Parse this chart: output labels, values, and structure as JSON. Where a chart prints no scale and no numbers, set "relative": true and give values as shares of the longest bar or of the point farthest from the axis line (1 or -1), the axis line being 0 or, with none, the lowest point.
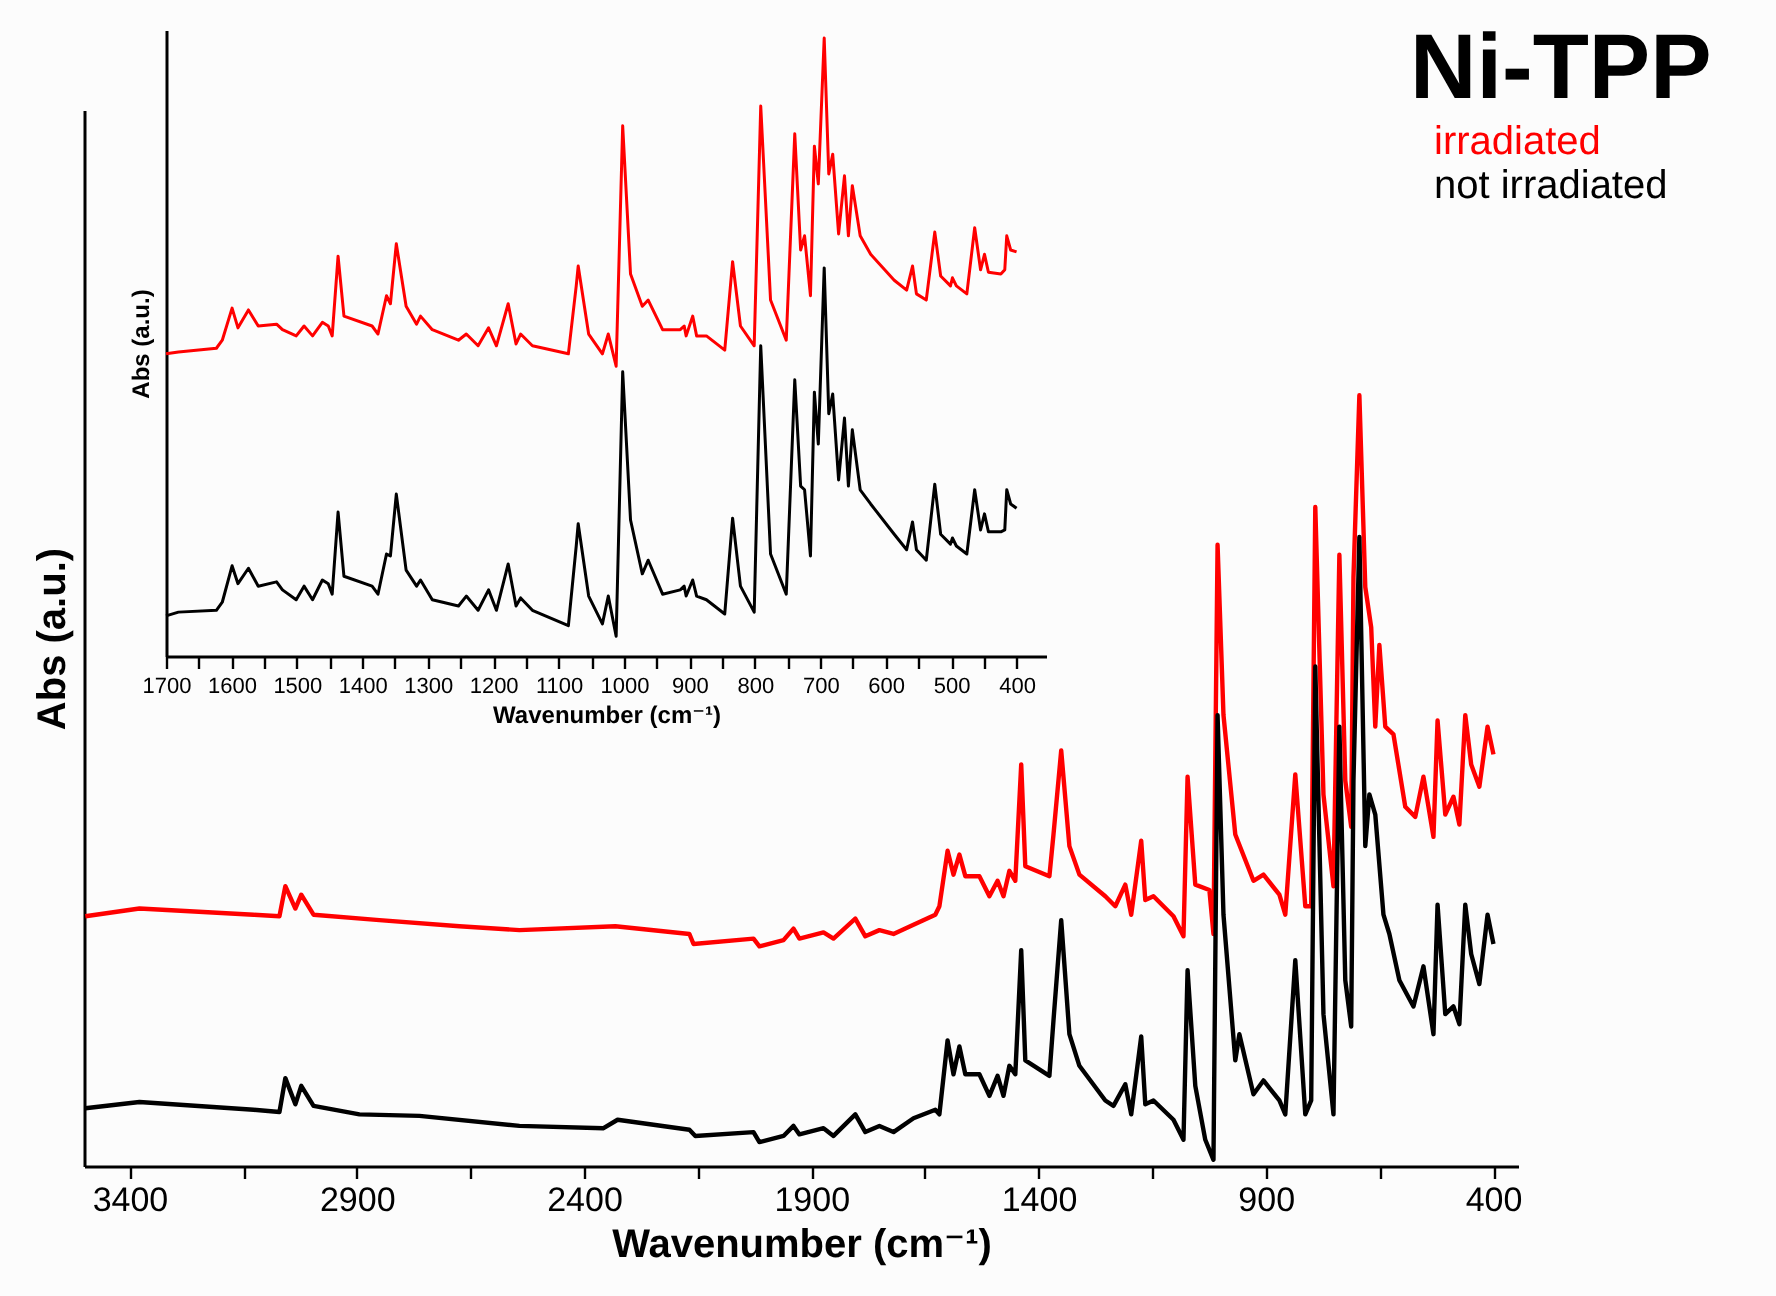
{
  "chart_data": [
    {
      "type": "line",
      "relative": true,
      "xlabel": "Wavenumber (cm⁻¹)",
      "ylabel": "Abs (a.u.)",
      "legend_title": "Ni-TPP",
      "legend": "top right",
      "xlim": [
        3500,
        345
      ],
      "xticks": [
        3400,
        {
          "value": 3150,
          "label": null
        },
        2900,
        {
          "value": 2650,
          "label": null
        },
        2400,
        {
          "value": 2150,
          "label": null
        },
        1900,
        {
          "value": 1650,
          "label": null
        },
        1400,
        {
          "value": 1150,
          "label": null
        },
        900,
        {
          "value": 650,
          "label": null
        },
        400
      ],
      "series": [
        {
          "name": "irradiated",
          "color": "#ff0000",
          "x": [
            3497,
            3378,
            3127,
            3070,
            3057,
            3035,
            3022,
            2995,
            2850,
            2674,
            2542,
            2331,
            2168,
            2159,
            2027,
            2014,
            1961,
            1939,
            1926,
            1873,
            1851,
            1803,
            1781,
            1750,
            1719,
            1675,
            1627,
            1618,
            1600,
            1587,
            1574,
            1561,
            1530,
            1508,
            1490,
            1477,
            1464,
            1451,
            1438,
            1429,
            1376,
            1367,
            1350,
            1332,
            1310,
            1253,
            1231,
            1209,
            1196,
            1174,
            1165,
            1147,
            1103,
            1081,
            1072,
            1055,
            1024,
            1015,
            1006,
            993,
            967,
            927,
            905,
            870,
            857,
            835,
            813,
            800,
            791,
            773,
            751,
            738,
            725,
            712,
            707,
            694,
            681,
            668,
            659,
            650,
            637,
            619,
            593,
            571,
            553,
            531,
            522,
            505,
            487,
            474,
            461,
            448,
            430,
            412,
            399
          ],
          "values": [
            0.324,
            0.334,
            0.326,
            0.324,
            0.363,
            0.334,
            0.352,
            0.326,
            0.319,
            0.311,
            0.306,
            0.311,
            0.301,
            0.288,
            0.295,
            0.285,
            0.293,
            0.308,
            0.295,
            0.303,
            0.295,
            0.321,
            0.298,
            0.306,
            0.301,
            0.313,
            0.326,
            0.337,
            0.409,
            0.378,
            0.404,
            0.376,
            0.376,
            0.35,
            0.37,
            0.35,
            0.383,
            0.37,
            0.521,
            0.389,
            0.376,
            0.43,
            0.539,
            0.415,
            0.378,
            0.35,
            0.337,
            0.365,
            0.326,
            0.422,
            0.345,
            0.35,
            0.324,
            0.298,
            0.505,
            0.365,
            0.358,
            0.301,
            0.806,
            0.585,
            0.43,
            0.37,
            0.378,
            0.352,
            0.326,
            0.508,
            0.337,
            0.337,
            0.855,
            0.482,
            0.363,
            0.793,
            0.5,
            0.44,
            0.764,
            1.0,
            0.751,
            0.699,
            0.57,
            0.676,
            0.57,
            0.56,
            0.466,
            0.453,
            0.505,
            0.427,
            0.578,
            0.456,
            0.479,
            0.443,
            0.585,
            0.521,
            0.492,
            0.57,
            0.534
          ]
        },
        {
          "name": "not irradiated",
          "color": "#000000",
          "x": [
            3497,
            3378,
            3127,
            3070,
            3057,
            3035,
            3022,
            2995,
            2894,
            2762,
            2542,
            2357,
            2326,
            2168,
            2155,
            2027,
            2014,
            1961,
            1939,
            1926,
            1873,
            1851,
            1803,
            1781,
            1750,
            1719,
            1675,
            1627,
            1618,
            1600,
            1587,
            1574,
            1561,
            1530,
            1508,
            1490,
            1477,
            1464,
            1451,
            1438,
            1429,
            1376,
            1367,
            1350,
            1332,
            1310,
            1253,
            1235,
            1209,
            1196,
            1174,
            1165,
            1147,
            1103,
            1081,
            1072,
            1055,
            1033,
            1015,
            1006,
            993,
            967,
            958,
            927,
            905,
            870,
            857,
            835,
            813,
            800,
            791,
            773,
            751,
            738,
            725,
            712,
            707,
            694,
            681,
            672,
            659,
            641,
            628,
            606,
            575,
            553,
            531,
            522,
            505,
            487,
            474,
            461,
            448,
            430,
            412,
            399
          ],
          "values": [
            0.075,
            0.083,
            0.073,
            0.07,
            0.114,
            0.08,
            0.104,
            0.078,
            0.067,
            0.065,
            0.052,
            0.049,
            0.06,
            0.047,
            0.039,
            0.044,
            0.031,
            0.039,
            0.052,
            0.041,
            0.049,
            0.039,
            0.067,
            0.044,
            0.052,
            0.044,
            0.062,
            0.073,
            0.067,
            0.163,
            0.119,
            0.155,
            0.119,
            0.119,
            0.091,
            0.117,
            0.091,
            0.13,
            0.119,
            0.28,
            0.137,
            0.117,
            0.189,
            0.319,
            0.171,
            0.13,
            0.085,
            0.078,
            0.106,
            0.067,
            0.168,
            0.08,
            0.085,
            0.06,
            0.034,
            0.254,
            0.104,
            0.034,
            0.008,
            0.585,
            0.326,
            0.137,
            0.171,
            0.093,
            0.111,
            0.085,
            0.067,
            0.267,
            0.067,
            0.085,
            0.648,
            0.197,
            0.067,
            0.57,
            0.241,
            0.181,
            0.5,
            0.816,
            0.415,
            0.482,
            0.456,
            0.326,
            0.301,
            0.241,
            0.207,
            0.259,
            0.171,
            0.339,
            0.197,
            0.207,
            0.184,
            0.339,
            0.275,
            0.236,
            0.326,
            0.288
          ]
        }
      ]
    },
    {
      "type": "line",
      "relative": true,
      "xlabel": "Wavenumber (cm⁻¹)",
      "ylabel": "Abs (a.u.)",
      "xlim": [
        1700,
        355
      ],
      "xticks": [
        1700,
        {
          "value": 1650,
          "label": null
        },
        1600,
        {
          "value": 1550,
          "label": null
        },
        1500,
        {
          "value": 1450,
          "label": null
        },
        1400,
        {
          "value": 1350,
          "label": null
        },
        1300,
        {
          "value": 1250,
          "label": null
        },
        1200,
        {
          "value": 1150,
          "label": null
        },
        1100,
        {
          "value": 1050,
          "label": null
        },
        1000,
        {
          "value": 950,
          "label": null
        },
        900,
        {
          "value": 850,
          "label": null
        },
        800,
        {
          "value": 750,
          "label": null
        },
        700,
        {
          "value": 650,
          "label": null
        },
        600,
        {
          "value": 550,
          "label": null
        },
        500,
        {
          "value": 450,
          "label": null
        },
        400
      ],
      "x": [
        1700,
        1681,
        1623,
        1614,
        1599,
        1590,
        1574,
        1559,
        1531,
        1522,
        1501,
        1489,
        1476,
        1461,
        1452,
        1446,
        1437,
        1428,
        1385,
        1376,
        1363,
        1357,
        1348,
        1333,
        1317,
        1311,
        1293,
        1253,
        1241,
        1223,
        1207,
        1195,
        1177,
        1165,
        1158,
        1140,
        1085,
        1073,
        1070,
        1054,
        1033,
        1024,
        1012,
        1002,
        990,
        972,
        963,
        941,
        914,
        908,
        905,
        895,
        889,
        874,
        846,
        834,
        822,
        801,
        791,
        776,
        752,
        739,
        730,
        724,
        715,
        709,
        703,
        694,
        687,
        681,
        672,
        663,
        657,
        651,
        639,
        623,
        587,
        568,
        559,
        553,
        538,
        525,
        516,
        501,
        498,
        492,
        476,
        464,
        455,
        449,
        443,
        424,
        418,
        415,
        409,
        400
      ],
      "series": [
        {
          "color": "#ff0000",
          "values": [
            0.489,
            0.492,
            0.498,
            0.511,
            0.563,
            0.531,
            0.56,
            0.534,
            0.537,
            0.528,
            0.518,
            0.534,
            0.518,
            0.54,
            0.534,
            0.518,
            0.647,
            0.55,
            0.534,
            0.521,
            0.583,
            0.57,
            0.667,
            0.566,
            0.537,
            0.55,
            0.528,
            0.511,
            0.521,
            0.502,
            0.531,
            0.502,
            0.57,
            0.505,
            0.521,
            0.502,
            0.489,
            0.599,
            0.631,
            0.521,
            0.489,
            0.521,
            0.469,
            0.858,
            0.618,
            0.566,
            0.576,
            0.528,
            0.528,
            0.534,
            0.518,
            0.55,
            0.518,
            0.518,
            0.495,
            0.638,
            0.534,
            0.502,
            0.89,
            0.576,
            0.511,
            0.845,
            0.657,
            0.68,
            0.583,
            0.825,
            0.764,
            1.0,
            0.78,
            0.812,
            0.683,
            0.777,
            0.68,
            0.761,
            0.68,
            0.65,
            0.608,
            0.592,
            0.631,
            0.586,
            0.576,
            0.686,
            0.615,
            0.599,
            0.612,
            0.599,
            0.586,
            0.693,
            0.625,
            0.65,
            0.621,
            0.618,
            0.625,
            0.68,
            0.657,
            0.654
          ]
        },
        {
          "color": "#000000",
          "values": [
            0.065,
            0.071,
            0.074,
            0.087,
            0.146,
            0.117,
            0.142,
            0.113,
            0.12,
            0.107,
            0.091,
            0.113,
            0.091,
            0.123,
            0.117,
            0.1,
            0.233,
            0.129,
            0.113,
            0.1,
            0.165,
            0.162,
            0.262,
            0.139,
            0.113,
            0.123,
            0.091,
            0.081,
            0.097,
            0.074,
            0.107,
            0.074,
            0.149,
            0.081,
            0.094,
            0.074,
            0.049,
            0.178,
            0.214,
            0.097,
            0.052,
            0.097,
            0.032,
            0.46,
            0.22,
            0.133,
            0.155,
            0.1,
            0.107,
            0.113,
            0.097,
            0.123,
            0.097,
            0.091,
            0.068,
            0.223,
            0.113,
            0.071,
            0.502,
            0.165,
            0.1,
            0.447,
            0.275,
            0.269,
            0.162,
            0.427,
            0.343,
            0.628,
            0.392,
            0.424,
            0.285,
            0.385,
            0.275,
            0.366,
            0.269,
            0.246,
            0.197,
            0.172,
            0.217,
            0.172,
            0.155,
            0.278,
            0.197,
            0.181,
            0.191,
            0.178,
            0.165,
            0.269,
            0.204,
            0.23,
            0.201,
            0.201,
            0.204,
            0.269,
            0.246,
            0.239
          ]
        }
      ]
    }
  ]
}
